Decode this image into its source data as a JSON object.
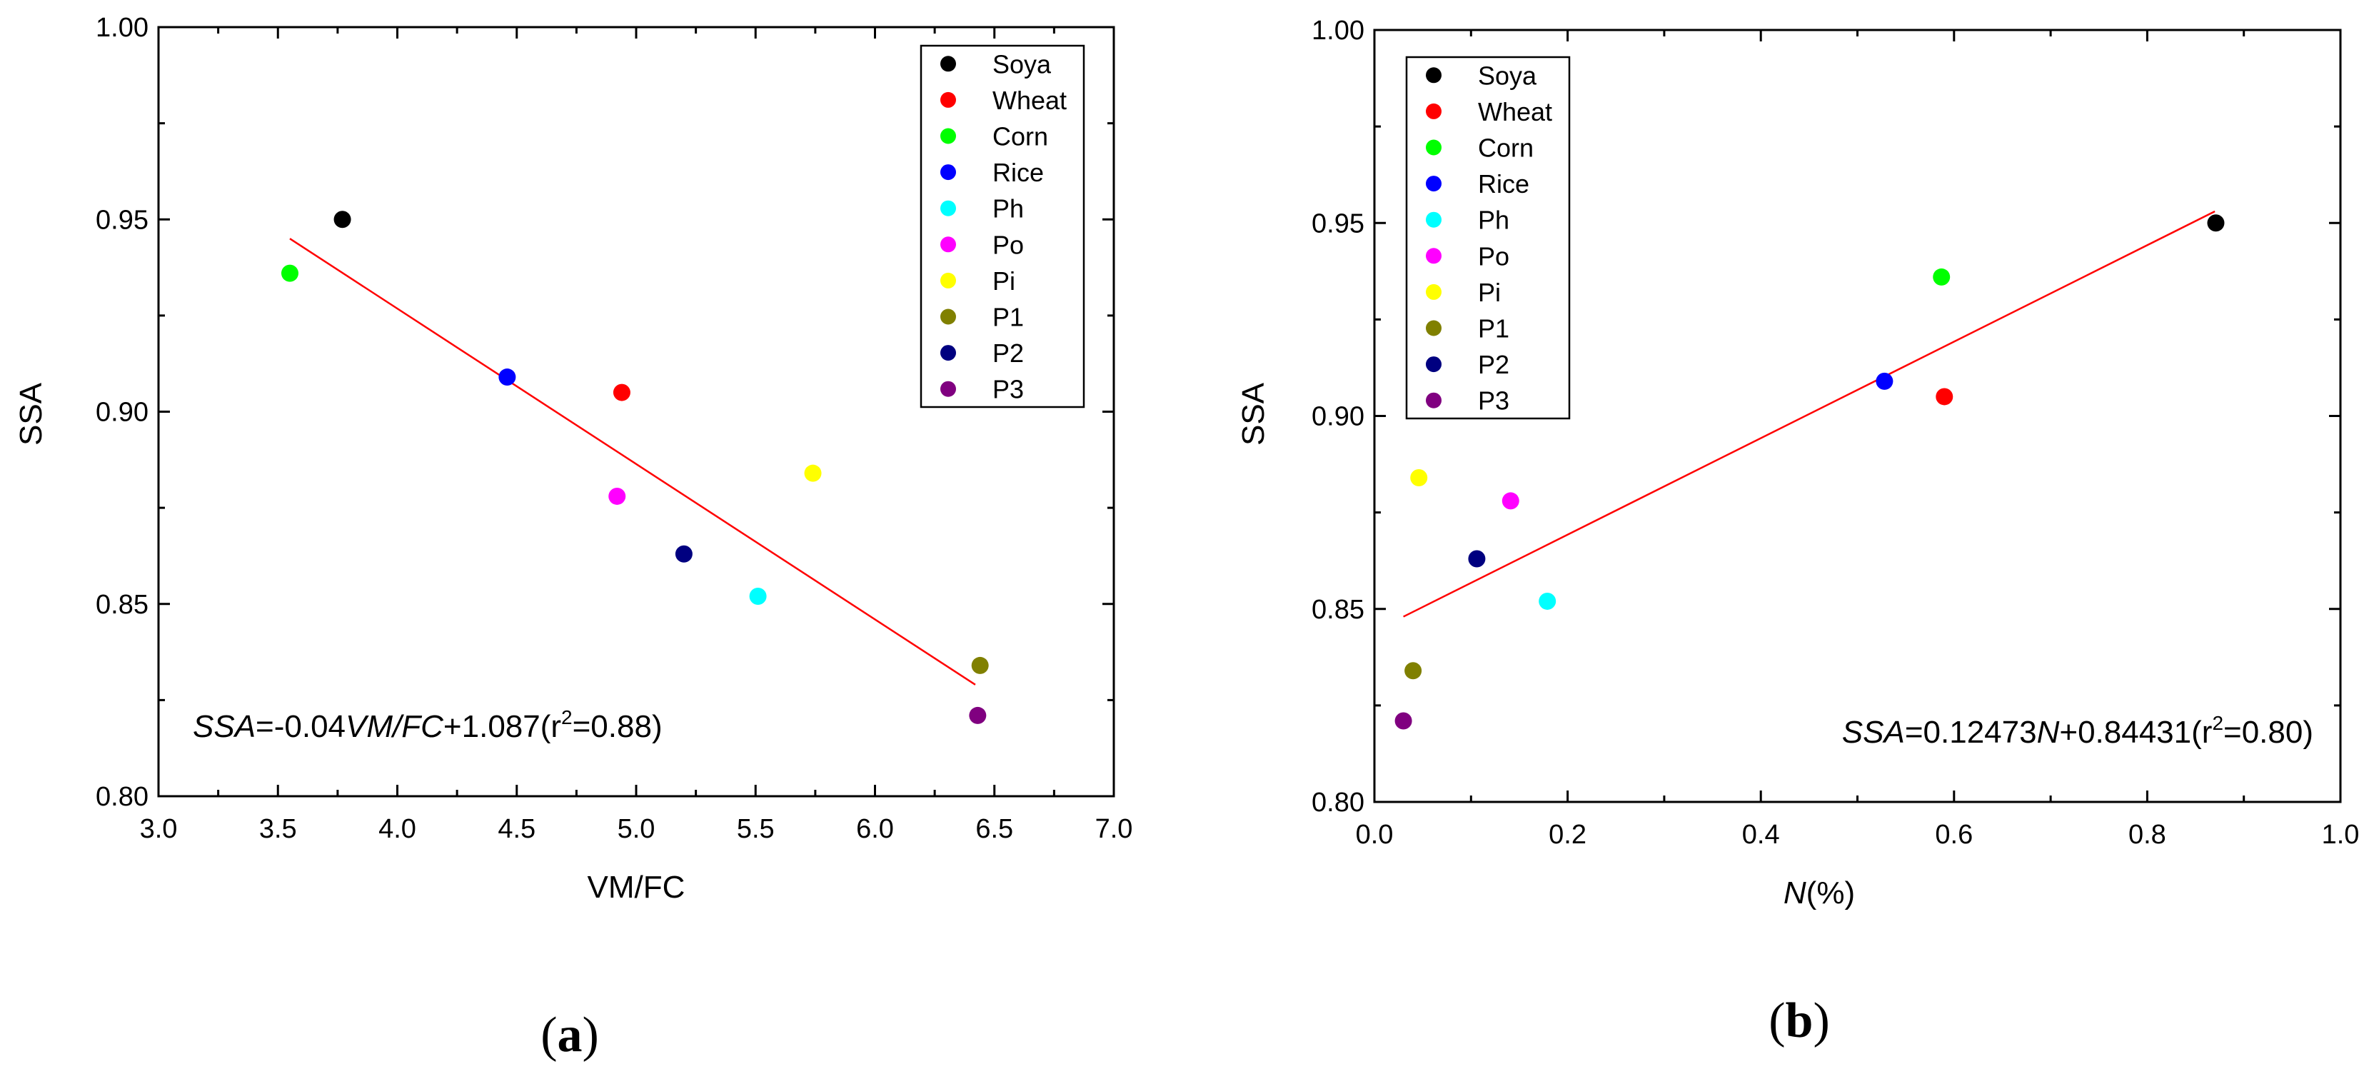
{
  "chart_data": [
    {
      "type": "scatter",
      "panel_label": "a",
      "xlabel": "VM/FC",
      "ylabel": "SSA",
      "xlim": [
        3.0,
        7.0
      ],
      "ylim": [
        0.8,
        1.0
      ],
      "x_ticks": [
        3.0,
        3.5,
        4.0,
        4.5,
        5.0,
        5.5,
        6.0,
        6.5,
        7.0
      ],
      "y_ticks": [
        0.8,
        0.85,
        0.9,
        0.95,
        1.0
      ],
      "legend_position": "top-right",
      "series": [
        {
          "name": "Soya",
          "color": "#000000",
          "x": 3.77,
          "y": 0.95
        },
        {
          "name": "Wheat",
          "color": "#ff0000",
          "x": 4.94,
          "y": 0.905
        },
        {
          "name": "Corn",
          "color": "#00ff00",
          "x": 3.55,
          "y": 0.936
        },
        {
          "name": "Rice",
          "color": "#0000ff",
          "x": 4.46,
          "y": 0.909
        },
        {
          "name": "Ph",
          "color": "#00ffff",
          "x": 5.51,
          "y": 0.852
        },
        {
          "name": "Po",
          "color": "#ff00ff",
          "x": 4.92,
          "y": 0.878
        },
        {
          "name": "Pi",
          "color": "#ffff00",
          "x": 5.74,
          "y": 0.884
        },
        {
          "name": "P1",
          "color": "#808000",
          "x": 6.44,
          "y": 0.834
        },
        {
          "name": "P2",
          "color": "#000080",
          "x": 5.2,
          "y": 0.863
        },
        {
          "name": "P3",
          "color": "#800080",
          "x": 6.43,
          "y": 0.821
        }
      ],
      "fit_line": {
        "color": "#ff0000",
        "x": [
          3.55,
          6.42
        ],
        "y": [
          0.945,
          0.829
        ]
      },
      "equation": {
        "italic_lhs": "SSA",
        "part1": "=-0.04",
        "italic_var": "VM/FC",
        "part2": "+1.087(r",
        "superscript": "2",
        "part3": "=0.88)"
      }
    },
    {
      "type": "scatter",
      "panel_label": "b",
      "xlabel_italic": "N",
      "xlabel_rest": "(%)",
      "ylabel": "SSA",
      "xlim": [
        0.0,
        1.0
      ],
      "ylim": [
        0.8,
        1.0
      ],
      "x_ticks": [
        0.0,
        0.2,
        0.4,
        0.6,
        0.8,
        1.0
      ],
      "y_ticks": [
        0.8,
        0.85,
        0.9,
        0.95,
        1.0
      ],
      "legend_position": "top-left",
      "series": [
        {
          "name": "Soya",
          "color": "#000000",
          "x": 0.871,
          "y": 0.95
        },
        {
          "name": "Wheat",
          "color": "#ff0000",
          "x": 0.59,
          "y": 0.905
        },
        {
          "name": "Corn",
          "color": "#00ff00",
          "x": 0.587,
          "y": 0.936
        },
        {
          "name": "Rice",
          "color": "#0000ff",
          "x": 0.528,
          "y": 0.909
        },
        {
          "name": "Ph",
          "color": "#00ffff",
          "x": 0.179,
          "y": 0.852
        },
        {
          "name": "Po",
          "color": "#ff00ff",
          "x": 0.141,
          "y": 0.878
        },
        {
          "name": "Pi",
          "color": "#ffff00",
          "x": 0.046,
          "y": 0.884
        },
        {
          "name": "P1",
          "color": "#808000",
          "x": 0.04,
          "y": 0.834
        },
        {
          "name": "P2",
          "color": "#000080",
          "x": 0.106,
          "y": 0.863
        },
        {
          "name": "P3",
          "color": "#800080",
          "x": 0.03,
          "y": 0.821
        }
      ],
      "fit_line": {
        "color": "#ff0000",
        "x": [
          0.03,
          0.87
        ],
        "y": [
          0.848,
          0.953
        ]
      },
      "equation": {
        "italic_lhs": "SSA",
        "part1": "=0.12473",
        "italic_var": "N",
        "part2": "+0.84431(r",
        "superscript": "2",
        "part3": "=0.80)"
      }
    }
  ]
}
